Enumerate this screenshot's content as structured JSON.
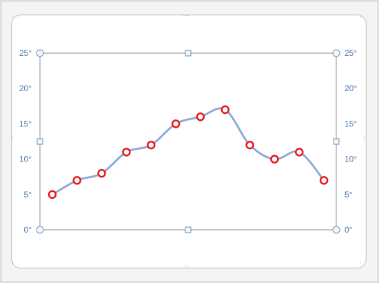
{
  "chart_data": {
    "type": "line",
    "title": "",
    "xlabel": "",
    "ylabel": "",
    "x": [
      1,
      2,
      3,
      4,
      5,
      6,
      7,
      8,
      9,
      10,
      11,
      12
    ],
    "series": [
      {
        "values": [
          5,
          7,
          8,
          11,
          12,
          15,
          16,
          17,
          12,
          10,
          11,
          7
        ],
        "line_color": "#8faad6",
        "marker_edge_color": "#e8131b",
        "marker_face_color": "#ffffff",
        "smooth": true
      }
    ],
    "ylim": [
      0,
      25
    ],
    "yticks": [
      0,
      5,
      10,
      15,
      20,
      25
    ],
    "ytick_labels": [
      "0°",
      "5°",
      "10°",
      "15°",
      "20°",
      "25°"
    ],
    "secondary_y_axis": true,
    "grid": false,
    "legend": "none",
    "plot_area_selected": true
  },
  "colors": {
    "tick_label": "#4a78b0",
    "plot_border": "#8c8c8c",
    "handle": "#6f8fb0"
  }
}
